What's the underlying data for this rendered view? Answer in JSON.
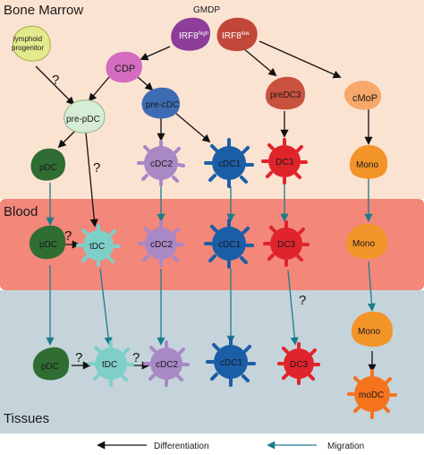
{
  "regions": {
    "bone_marrow": "Bone Marrow",
    "blood": "Blood",
    "tissues": "Tissues"
  },
  "progenitors": {
    "gmdp": "GMDP",
    "irf8_high": "IRF8",
    "irf8_high_sup": "high",
    "irf8_low": "IRF8",
    "irf8_low_sup": "low",
    "lymphoid_line1": "lymphoid",
    "lymphoid_line2": "progenitor",
    "cdp": "CDP",
    "pre_pdc": "pre-pDC",
    "pre_cdc": "pre-cDC",
    "predc3": "preDC3",
    "cmop": "cMoP"
  },
  "cells": {
    "pdc": "pDC",
    "tdc": "tDC",
    "cdc2": "cDC2",
    "cdc1": "cDC1",
    "dc3": "DC3",
    "mono": "Mono",
    "modc": "moDC"
  },
  "question_mark": "?",
  "legend": {
    "differentiation": "Differentiation",
    "migration": "Migration"
  },
  "colors": {
    "bone_marrow_bg": "#fbe3d2",
    "blood_bg": "#f2877a",
    "tissues_bg": "#c5d4da",
    "pdc": "#2f6d33",
    "tdc": "#7fcfc9",
    "cdc2": "#a988c6",
    "cdc1": "#1b5ea8",
    "dc3": "#e0242b",
    "mono": "#f39429",
    "migration_arrow": "#1a7c8d"
  }
}
